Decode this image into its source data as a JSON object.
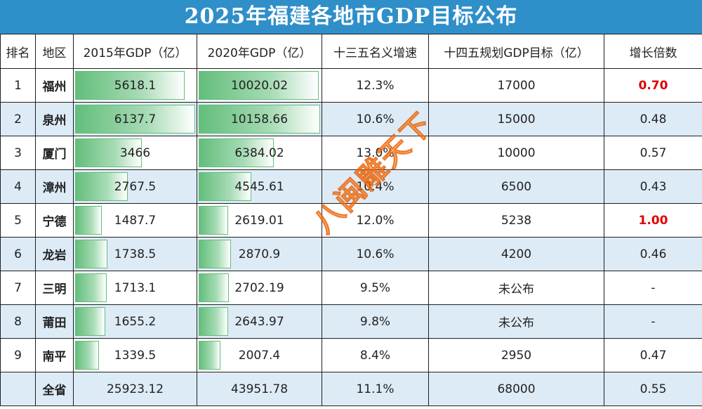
{
  "title": "2025年福建各地市GDP目标公布",
  "headers": [
    "排名",
    "地区",
    "2015年GDP（亿）",
    "2020年GDP（亿）",
    "十三五名义增速",
    "十四五规划GDP目标（亿）",
    "增长倍数"
  ],
  "rows": [
    {
      "rank": "1",
      "region": "福州",
      "gdp2015": "5618.1",
      "gdp2020": "10020.02",
      "growth": "12.3%",
      "target": "17000",
      "multiple": "0.70",
      "highlight": true,
      "bar2015": 0.915,
      "bar2020": 0.986
    },
    {
      "rank": "2",
      "region": "泉州",
      "gdp2015": "6137.7",
      "gdp2020": "10158.66",
      "growth": "10.6%",
      "target": "15000",
      "multiple": "0.48",
      "highlight": false,
      "bar2015": 1.0,
      "bar2020": 1.0
    },
    {
      "rank": "3",
      "region": "厦门",
      "gdp2015": "3466",
      "gdp2020": "6384.02",
      "growth": "13.0%",
      "target": "10000",
      "multiple": "0.57",
      "highlight": false,
      "bar2015": 0.565,
      "bar2020": 0.628
    },
    {
      "rank": "4",
      "region": "漳州",
      "gdp2015": "2767.5",
      "gdp2020": "4545.61",
      "growth": "10.4%",
      "target": "6500",
      "multiple": "0.43",
      "highlight": false,
      "bar2015": 0.451,
      "bar2020": 0.447
    },
    {
      "rank": "5",
      "region": "宁德",
      "gdp2015": "1487.7",
      "gdp2020": "2619.01",
      "growth": "12.0%",
      "target": "5238",
      "multiple": "1.00",
      "highlight": true,
      "bar2015": 0.242,
      "bar2020": 0.258
    },
    {
      "rank": "6",
      "region": "龙岩",
      "gdp2015": "1738.5",
      "gdp2020": "2870.9",
      "growth": "10.6%",
      "target": "4200",
      "multiple": "0.46",
      "highlight": false,
      "bar2015": 0.283,
      "bar2020": 0.283
    },
    {
      "rank": "7",
      "region": "三明",
      "gdp2015": "1713.1",
      "gdp2020": "2702.19",
      "growth": "9.5%",
      "target": "未公布",
      "multiple": "-",
      "highlight": false,
      "bar2015": 0.279,
      "bar2020": 0.266
    },
    {
      "rank": "8",
      "region": "莆田",
      "gdp2015": "1655.2",
      "gdp2020": "2643.97",
      "growth": "9.8%",
      "target": "未公布",
      "multiple": "-",
      "highlight": false,
      "bar2015": 0.27,
      "bar2020": 0.26
    },
    {
      "rank": "9",
      "region": "南平",
      "gdp2015": "1339.5",
      "gdp2020": "2007.4",
      "growth": "8.4%",
      "target": "2950",
      "multiple": "0.47",
      "highlight": false,
      "bar2015": 0.218,
      "bar2020": 0.198
    },
    {
      "rank": "",
      "region": "全省",
      "gdp2015": "25923.12",
      "gdp2020": "43951.78",
      "growth": "11.1%",
      "target": "68000",
      "multiple": "0.55",
      "highlight": false,
      "bar2015": 0,
      "bar2020": 0
    }
  ],
  "watermark": "八闽雕天下",
  "colors": {
    "title_bg": "#2f8fc9",
    "band": "#ddebf7",
    "bar": "#63be7b",
    "highlight": "#e00000"
  }
}
